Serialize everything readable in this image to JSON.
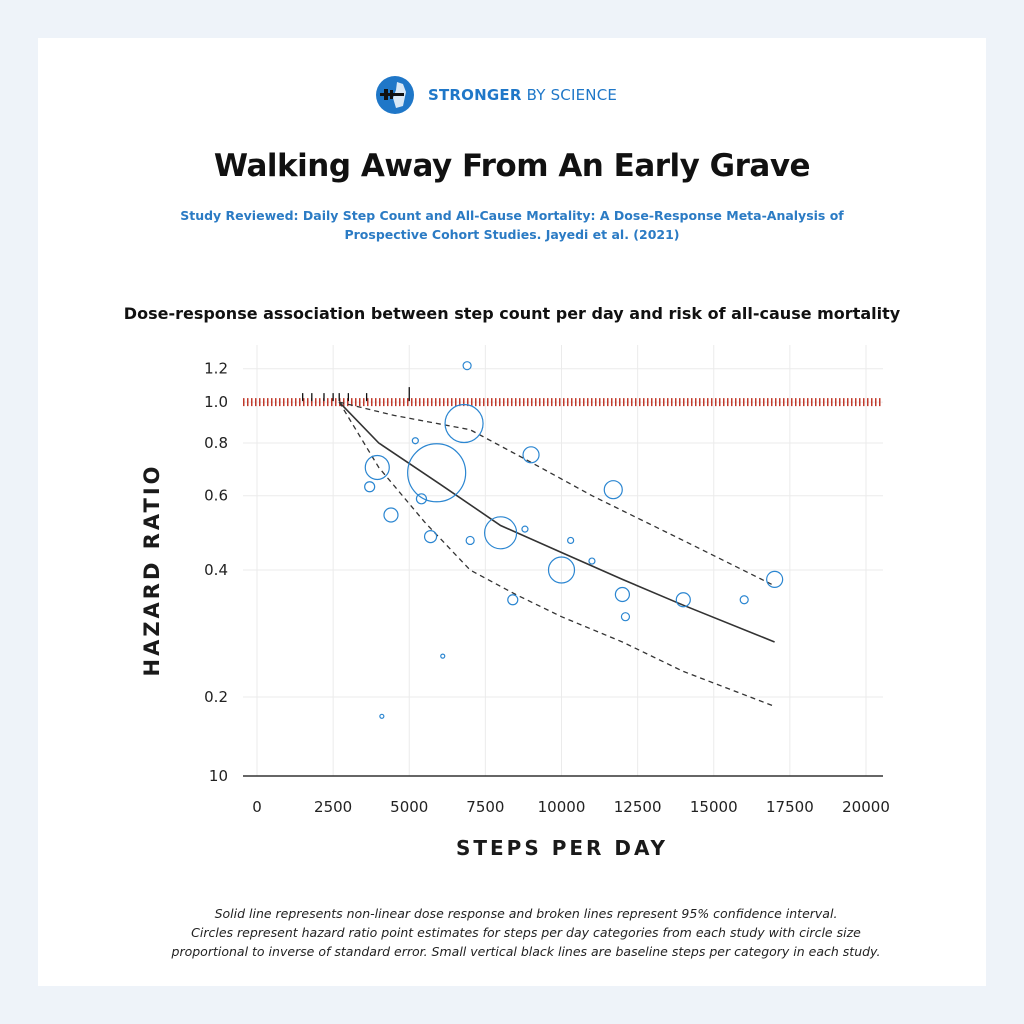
{
  "brand": {
    "name_strong": "STRONGER",
    "name_rest": " BY SCIENCE",
    "color": "#1f77c8"
  },
  "header": {
    "title": "Walking Away From An Early Grave",
    "study_line1": "Study Reviewed: Daily Step Count and All-Cause Mortality: A Dose-Response Meta-Analysis of",
    "study_line2": "Prospective Cohort Studies. Jayedi et al. (2021)"
  },
  "caption": {
    "line1": "Solid line represents non-linear dose response and broken lines represent 95% confidence interval.",
    "line2": "Circles represent hazard ratio point estimates for steps per day categories from each study with circle size",
    "line3": "proportional to inverse of standard error. Small vertical black lines are baseline steps per category in each study."
  },
  "chart_data": {
    "type": "scatter",
    "title": "Dose-response association between step count per day and risk of all-cause mortality",
    "xlabel": "STEPS PER DAY",
    "ylabel": "HAZARD RATIO",
    "xlim": [
      0,
      20000
    ],
    "x_ticks": [
      0,
      2500,
      5000,
      7500,
      10000,
      12500,
      15000,
      17500,
      20000
    ],
    "y_scale": "log",
    "y_ticks": [
      0.2,
      0.4,
      0.6,
      0.8,
      1.0,
      1.2
    ],
    "y_tick_labels": [
      "0.2",
      "0.4",
      "0.6",
      "0.8",
      "1.0",
      "1.2"
    ],
    "y_baseline_label": "10",
    "reference_line": {
      "y": 1.0,
      "color": "#c0392b",
      "style": "dotted"
    },
    "grid": true,
    "colors": {
      "points": "#2b86d1",
      "fit": "#333333",
      "ci": "#333333"
    },
    "dose_response": {
      "x": [
        2700,
        4000,
        6000,
        8000,
        10000,
        12000,
        14000,
        17000
      ],
      "y": [
        1.0,
        0.8,
        0.64,
        0.51,
        0.44,
        0.38,
        0.33,
        0.27
      ]
    },
    "ci_upper": {
      "x": [
        2700,
        4500,
        7000,
        9000,
        11000,
        14000,
        16900
      ],
      "y": [
        1.0,
        0.93,
        0.86,
        0.72,
        0.6,
        0.47,
        0.37
      ]
    },
    "ci_lower": {
      "x": [
        2700,
        4000,
        5500,
        7000,
        8500,
        10000,
        12000,
        14000,
        17000
      ],
      "y": [
        1.0,
        0.7,
        0.52,
        0.4,
        0.35,
        0.31,
        0.27,
        0.23,
        0.19
      ]
    },
    "points": [
      {
        "x": 6900,
        "y": 1.22,
        "size": 4
      },
      {
        "x": 6800,
        "y": 0.89,
        "size": 19
      },
      {
        "x": 5900,
        "y": 0.68,
        "size": 29
      },
      {
        "x": 5200,
        "y": 0.81,
        "size": 3
      },
      {
        "x": 3950,
        "y": 0.7,
        "size": 12
      },
      {
        "x": 3700,
        "y": 0.63,
        "size": 5
      },
      {
        "x": 5400,
        "y": 0.59,
        "size": 5
      },
      {
        "x": 4400,
        "y": 0.54,
        "size": 7
      },
      {
        "x": 5700,
        "y": 0.48,
        "size": 6
      },
      {
        "x": 7000,
        "y": 0.47,
        "size": 4
      },
      {
        "x": 8000,
        "y": 0.49,
        "size": 16
      },
      {
        "x": 9000,
        "y": 0.75,
        "size": 8
      },
      {
        "x": 8800,
        "y": 0.5,
        "size": 3
      },
      {
        "x": 10000,
        "y": 0.4,
        "size": 13
      },
      {
        "x": 10300,
        "y": 0.47,
        "size": 3
      },
      {
        "x": 11000,
        "y": 0.42,
        "size": 3
      },
      {
        "x": 11700,
        "y": 0.62,
        "size": 9
      },
      {
        "x": 12000,
        "y": 0.35,
        "size": 7
      },
      {
        "x": 12100,
        "y": 0.31,
        "size": 4
      },
      {
        "x": 8400,
        "y": 0.34,
        "size": 5
      },
      {
        "x": 14000,
        "y": 0.34,
        "size": 7
      },
      {
        "x": 16000,
        "y": 0.34,
        "size": 4
      },
      {
        "x": 17000,
        "y": 0.38,
        "size": 8
      },
      {
        "x": 6100,
        "y": 0.25,
        "size": 2
      },
      {
        "x": 4100,
        "y": 0.18,
        "size": 2
      }
    ],
    "baseline_steps": [
      1500,
      1800,
      2200,
      2500,
      2700,
      3000,
      3600,
      5000
    ]
  }
}
